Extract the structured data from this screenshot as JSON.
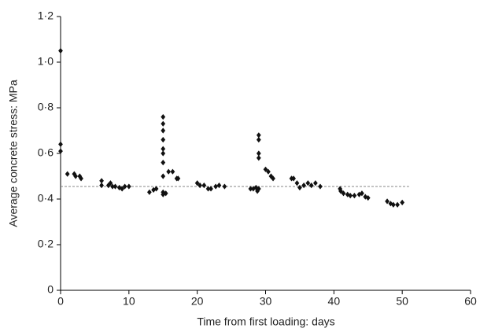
{
  "chart_data": {
    "type": "scatter",
    "x_label": "Time from first loading: days",
    "y_label": "Average concrete stress: MPa",
    "xlim": [
      0,
      60
    ],
    "xticks": [
      0,
      10,
      20,
      30,
      40,
      50,
      60
    ],
    "ylim": [
      0,
      1.2
    ],
    "yticks": [
      0,
      {
        "value": 0.2,
        "label": "0·2"
      },
      {
        "value": 0.4,
        "label": "0·4"
      },
      {
        "value": 0.6,
        "label": "0·6"
      },
      {
        "value": 0.8,
        "label": "0·8"
      },
      {
        "value": 1.0,
        "label": "1·0"
      },
      {
        "value": 1.2,
        "label": "1·2"
      }
    ],
    "grid": false,
    "reference_line": {
      "y": 0.455,
      "x": [
        0,
        51
      ],
      "color": "#777"
    },
    "series": [
      {
        "color": "#111",
        "x": [
          0,
          0,
          0,
          1,
          2,
          2.2,
          2.8,
          3,
          6,
          6,
          7,
          7.3,
          7.6,
          8,
          8.6,
          9,
          9.4,
          10,
          13,
          13.6,
          14,
          15,
          15,
          15,
          15,
          15,
          15,
          15,
          15,
          15,
          15,
          15.4,
          15.8,
          16.4,
          17,
          17.2,
          20,
          20.4,
          21,
          21.6,
          22,
          22.7,
          23.2,
          24,
          27.8,
          28.2,
          28.6,
          28.8,
          29,
          29,
          29,
          29,
          29,
          30,
          30.4,
          30.8,
          31.1,
          33.8,
          34.1,
          34.6,
          35,
          35.6,
          36.2,
          36.7,
          37.3,
          38,
          40.9,
          41,
          41.4,
          42,
          42.4,
          43,
          43.7,
          44.1,
          44.6,
          45,
          47.8,
          48.3,
          48.7,
          49.3,
          50
        ],
        "values": [
          1.05,
          0.64,
          0.61,
          0.51,
          0.51,
          0.5,
          0.5,
          0.49,
          0.48,
          0.46,
          0.46,
          0.47,
          0.455,
          0.455,
          0.45,
          0.445,
          0.455,
          0.455,
          0.43,
          0.44,
          0.445,
          0.76,
          0.73,
          0.7,
          0.66,
          0.62,
          0.6,
          0.56,
          0.5,
          0.43,
          0.42,
          0.425,
          0.52,
          0.52,
          0.49,
          0.49,
          0.47,
          0.46,
          0.46,
          0.445,
          0.445,
          0.455,
          0.46,
          0.455,
          0.445,
          0.445,
          0.45,
          0.435,
          0.445,
          0.68,
          0.66,
          0.6,
          0.58,
          0.53,
          0.52,
          0.5,
          0.49,
          0.49,
          0.49,
          0.47,
          0.45,
          0.46,
          0.47,
          0.46,
          0.47,
          0.455,
          0.445,
          0.435,
          0.425,
          0.42,
          0.415,
          0.415,
          0.42,
          0.425,
          0.41,
          0.405,
          0.39,
          0.38,
          0.375,
          0.375,
          0.385
        ]
      }
    ]
  }
}
